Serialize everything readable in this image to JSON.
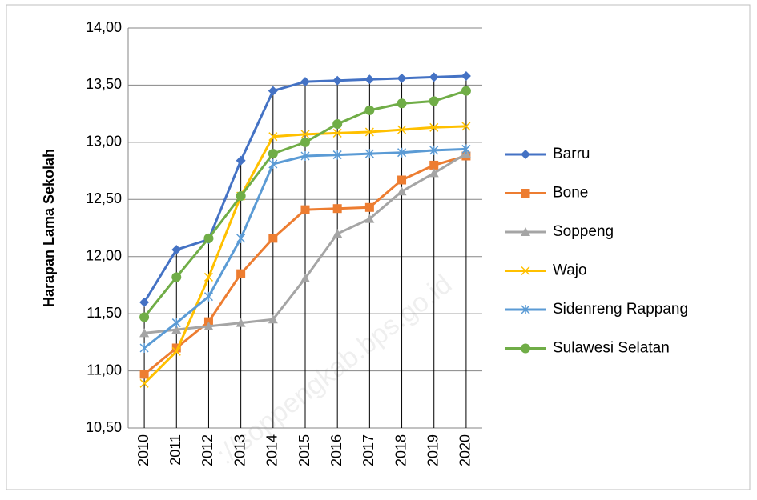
{
  "chart_data": {
    "type": "line",
    "y_label": "Harapan Lama Sekolah",
    "watermark": "://soppengkab.bps.go.id",
    "categories": [
      "2010",
      "2011",
      "2012",
      "2013",
      "2014",
      "2015",
      "2016",
      "2017",
      "2018",
      "2019",
      "2020"
    ],
    "ylim": [
      10.5,
      14
    ],
    "yticks": [
      {
        "value": 10.5,
        "label": "10,50"
      },
      {
        "value": 11,
        "label": "11,00"
      },
      {
        "value": 11.5,
        "label": "11,50"
      },
      {
        "value": 12,
        "label": "12,00"
      },
      {
        "value": 12.5,
        "label": "12,50"
      },
      {
        "value": 13,
        "label": "13,00"
      },
      {
        "value": 13.5,
        "label": "13,50"
      },
      {
        "value": 14,
        "label": "14,00"
      }
    ],
    "grid": true,
    "drop_lines": true,
    "legend": "right",
    "series": [
      {
        "name": "Barru",
        "color": "#4472c4",
        "marker": "diamond",
        "values": [
          11.6,
          12.06,
          12.15,
          12.84,
          13.45,
          13.53,
          13.54,
          13.55,
          13.56,
          13.57,
          13.58
        ]
      },
      {
        "name": "Bone",
        "color": "#ed7d31",
        "marker": "square",
        "values": [
          10.97,
          11.2,
          11.43,
          11.85,
          12.16,
          12.41,
          12.42,
          12.43,
          12.67,
          12.8,
          12.88
        ]
      },
      {
        "name": "Soppeng",
        "color": "#a5a5a5",
        "marker": "triangle",
        "values": [
          11.33,
          11.36,
          11.39,
          11.42,
          11.45,
          11.81,
          12.2,
          12.33,
          12.57,
          12.73,
          12.9
        ]
      },
      {
        "name": "Wajo",
        "color": "#ffc000",
        "marker": "x",
        "values": [
          10.89,
          11.17,
          11.82,
          12.53,
          13.05,
          13.07,
          13.08,
          13.09,
          13.11,
          13.13,
          13.14
        ]
      },
      {
        "name": "Sidenreng Rappang",
        "color": "#5b9bd5",
        "marker": "star",
        "values": [
          11.2,
          11.42,
          11.65,
          12.16,
          12.81,
          12.88,
          12.89,
          12.9,
          12.91,
          12.93,
          12.94
        ]
      },
      {
        "name": "Sulawesi Selatan",
        "color": "#70ad47",
        "marker": "circle",
        "values": [
          11.47,
          11.82,
          12.16,
          12.53,
          12.9,
          13.0,
          13.16,
          13.28,
          13.34,
          13.36,
          13.45
        ]
      }
    ]
  }
}
